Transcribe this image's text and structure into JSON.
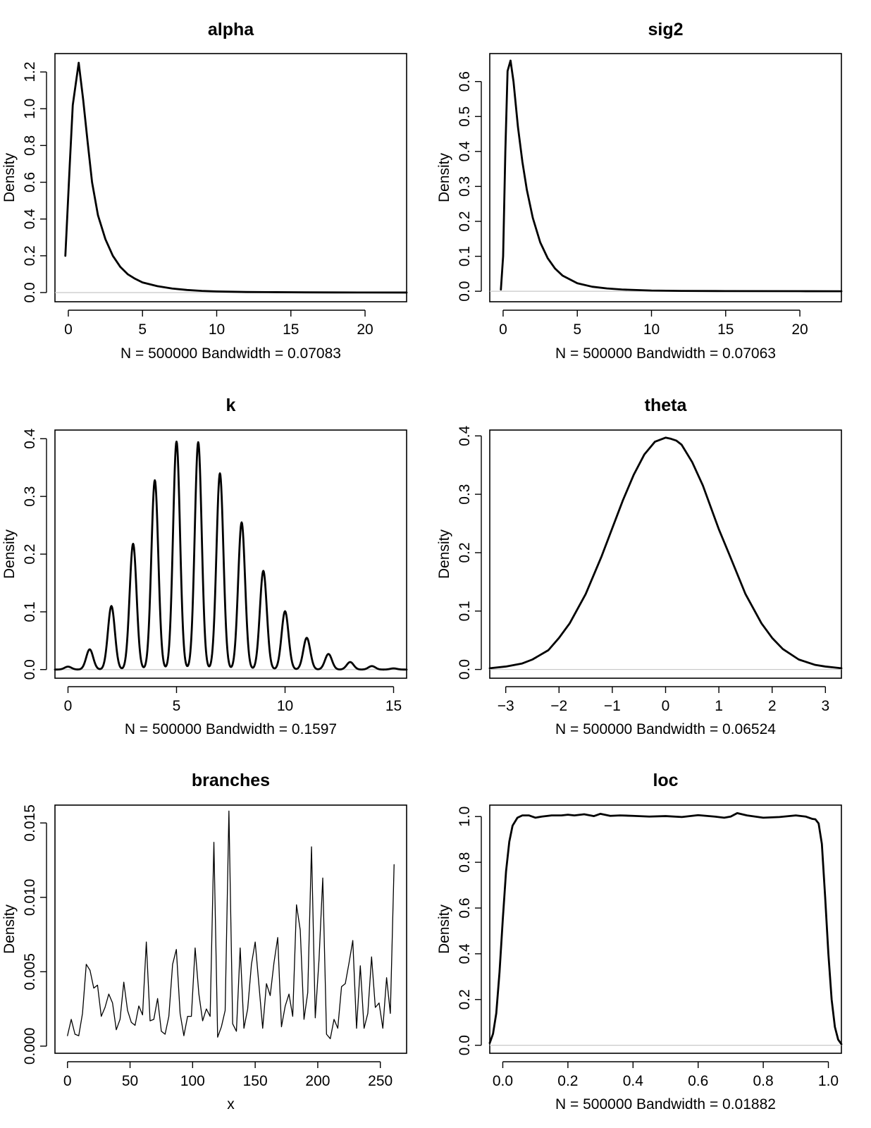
{
  "chart_data": [
    {
      "type": "line",
      "title": "alpha",
      "xlabel": "N = 500000   Bandwidth = 0.07083",
      "ylabel": "Density",
      "xlim": [
        -0.9,
        22.8
      ],
      "ylim": [
        -0.05,
        1.3
      ],
      "xticks": [
        0,
        5,
        10,
        15,
        20
      ],
      "xtick_labels": [
        "0",
        "5",
        "10",
        "15",
        "20"
      ],
      "yticks": [
        0.0,
        0.2,
        0.4,
        0.6,
        0.8,
        1.0,
        1.2
      ],
      "ytick_labels": [
        "0.0",
        "0.2",
        "0.4",
        "0.6",
        "0.8",
        "1.0",
        "1.2"
      ],
      "zero_line": true,
      "line_weight": "thick",
      "series": [
        {
          "x": [
            -0.2,
            0.1,
            0.3,
            0.7,
            1.0,
            1.3,
            1.6,
            2.0,
            2.5,
            3.0,
            3.5,
            4.0,
            4.5,
            5.0,
            6.0,
            7.0,
            8.0,
            9.0,
            10.0,
            12.0,
            14.0,
            16.0,
            18.0,
            20.0,
            22.8
          ],
          "y": [
            0.2,
            0.7,
            1.02,
            1.25,
            1.05,
            0.82,
            0.6,
            0.42,
            0.29,
            0.2,
            0.14,
            0.1,
            0.075,
            0.055,
            0.035,
            0.022,
            0.014,
            0.009,
            0.006,
            0.003,
            0.002,
            0.001,
            0.0005,
            0.0003,
            0.0
          ]
        }
      ]
    },
    {
      "type": "line",
      "title": "sig2",
      "xlabel": "N = 500000   Bandwidth = 0.07063",
      "ylabel": "Density",
      "xlim": [
        -0.9,
        22.8
      ],
      "ylim": [
        -0.03,
        0.68
      ],
      "xticks": [
        0,
        5,
        10,
        15,
        20
      ],
      "xtick_labels": [
        "0",
        "5",
        "10",
        "15",
        "20"
      ],
      "yticks": [
        0.0,
        0.1,
        0.2,
        0.3,
        0.4,
        0.5,
        0.6
      ],
      "ytick_labels": [
        "0.0",
        "0.1",
        "0.2",
        "0.3",
        "0.4",
        "0.5",
        "0.6"
      ],
      "zero_line": true,
      "line_weight": "thick",
      "series": [
        {
          "x": [
            -0.15,
            0.0,
            0.15,
            0.3,
            0.5,
            0.7,
            1.0,
            1.3,
            1.6,
            2.0,
            2.5,
            3.0,
            3.5,
            4.0,
            5.0,
            6.0,
            7.0,
            8.0,
            10.0,
            12.0,
            15.0,
            20.0,
            22.8
          ],
          "y": [
            0.005,
            0.1,
            0.4,
            0.63,
            0.66,
            0.6,
            0.47,
            0.37,
            0.29,
            0.21,
            0.14,
            0.095,
            0.065,
            0.045,
            0.023,
            0.013,
            0.008,
            0.005,
            0.002,
            0.001,
            0.0005,
            0.0002,
            0.0
          ]
        }
      ]
    },
    {
      "type": "line",
      "title": "k",
      "xlabel": "N = 500000   Bandwidth = 0.1597",
      "ylabel": "Density",
      "xlim": [
        -0.6,
        15.6
      ],
      "ylim": [
        -0.015,
        0.415
      ],
      "xticks": [
        0,
        5,
        10,
        15
      ],
      "xtick_labels": [
        "0",
        "5",
        "10",
        "15"
      ],
      "yticks": [
        0.0,
        0.1,
        0.2,
        0.3,
        0.4
      ],
      "ytick_labels": [
        "0.0",
        "0.1",
        "0.2",
        "0.3",
        "0.4"
      ],
      "zero_line": true,
      "line_weight": "thick",
      "peaks": [
        {
          "x": 0,
          "y": 0.005
        },
        {
          "x": 1,
          "y": 0.035
        },
        {
          "x": 2,
          "y": 0.11
        },
        {
          "x": 3,
          "y": 0.218
        },
        {
          "x": 4,
          "y": 0.328
        },
        {
          "x": 5,
          "y": 0.395
        },
        {
          "x": 6,
          "y": 0.394
        },
        {
          "x": 7,
          "y": 0.34
        },
        {
          "x": 8,
          "y": 0.255
        },
        {
          "x": 9,
          "y": 0.171
        },
        {
          "x": 10,
          "y": 0.101
        },
        {
          "x": 11,
          "y": 0.055
        },
        {
          "x": 12,
          "y": 0.027
        },
        {
          "x": 13,
          "y": 0.013
        },
        {
          "x": 14,
          "y": 0.006
        },
        {
          "x": 15,
          "y": 0.002
        }
      ],
      "peak_sd": 0.16
    },
    {
      "type": "line",
      "title": "theta",
      "xlabel": "N = 500000   Bandwidth = 0.06524",
      "ylabel": "Density",
      "xlim": [
        -3.3,
        3.3
      ],
      "ylim": [
        -0.015,
        0.41
      ],
      "xticks": [
        -3,
        -2,
        -1,
        0,
        1,
        2,
        3
      ],
      "xtick_labels": [
        "−3",
        "−2",
        "−1",
        "0",
        "1",
        "2",
        "3"
      ],
      "yticks": [
        0.0,
        0.1,
        0.2,
        0.3,
        0.4
      ],
      "ytick_labels": [
        "0.0",
        "0.1",
        "0.2",
        "0.3",
        "0.4"
      ],
      "zero_line": true,
      "line_weight": "thick",
      "series": [
        {
          "x": [
            -3.3,
            -3.0,
            -2.7,
            -2.5,
            -2.2,
            -2.0,
            -1.8,
            -1.5,
            -1.2,
            -1.0,
            -0.8,
            -0.6,
            -0.4,
            -0.2,
            0.0,
            0.1,
            0.2,
            0.3,
            0.5,
            0.7,
            1.0,
            1.2,
            1.5,
            1.8,
            2.0,
            2.2,
            2.5,
            2.8,
            3.0,
            3.3
          ],
          "y": [
            0.002,
            0.005,
            0.01,
            0.017,
            0.033,
            0.054,
            0.079,
            0.129,
            0.194,
            0.242,
            0.29,
            0.333,
            0.368,
            0.39,
            0.397,
            0.395,
            0.392,
            0.385,
            0.355,
            0.315,
            0.24,
            0.196,
            0.129,
            0.079,
            0.054,
            0.035,
            0.017,
            0.008,
            0.005,
            0.002
          ]
        }
      ]
    },
    {
      "type": "line",
      "title": "branches",
      "xlabel": "x",
      "ylabel": "Density",
      "xlim": [
        -10,
        271
      ],
      "ylim": [
        -0.00048,
        0.0162
      ],
      "xticks": [
        0,
        50,
        100,
        150,
        200,
        250
      ],
      "xtick_labels": [
        "0",
        "50",
        "100",
        "150",
        "200",
        "250"
      ],
      "yticks": [
        0.0,
        0.005,
        0.01,
        0.015
      ],
      "ytick_labels": [
        "0.000",
        "0.005",
        "0.010",
        "0.015"
      ],
      "zero_line": false,
      "line_weight": "thin",
      "series": [
        {
          "x": [
            0,
            3,
            6,
            9,
            12,
            15,
            18,
            21,
            24,
            27,
            30,
            33,
            36,
            39,
            42,
            45,
            48,
            51,
            54,
            57,
            60,
            63,
            66,
            69,
            72,
            75,
            78,
            81,
            84,
            87,
            90,
            93,
            96,
            99,
            102,
            105,
            108,
            111,
            114,
            117,
            120,
            123,
            126,
            129,
            132,
            135,
            138,
            141,
            144,
            147,
            150,
            153,
            156,
            159,
            162,
            165,
            168,
            171,
            174,
            177,
            180,
            183,
            186,
            189,
            192,
            195,
            198,
            201,
            204,
            207,
            210,
            213,
            216,
            219,
            222,
            225,
            228,
            231,
            234,
            237,
            240,
            243,
            246,
            249,
            252,
            255,
            258,
            261
          ],
          "y": [
            0.0007,
            0.0018,
            0.0008,
            0.0007,
            0.0022,
            0.0055,
            0.0051,
            0.0039,
            0.0041,
            0.002,
            0.0026,
            0.0035,
            0.0029,
            0.0011,
            0.0018,
            0.0043,
            0.0024,
            0.0016,
            0.0014,
            0.0027,
            0.0021,
            0.007,
            0.0017,
            0.0018,
            0.0032,
            0.001,
            0.0008,
            0.002,
            0.0055,
            0.0065,
            0.0022,
            0.0007,
            0.002,
            0.002,
            0.0066,
            0.0035,
            0.0017,
            0.0025,
            0.002,
            0.0137,
            0.0006,
            0.0013,
            0.0024,
            0.0158,
            0.0015,
            0.001,
            0.0066,
            0.0012,
            0.0025,
            0.0055,
            0.007,
            0.0041,
            0.0012,
            0.0042,
            0.0034,
            0.0056,
            0.0073,
            0.0013,
            0.0027,
            0.0035,
            0.002,
            0.0095,
            0.0078,
            0.0018,
            0.0036,
            0.0134,
            0.0019,
            0.0058,
            0.0113,
            0.0008,
            0.0005,
            0.0018,
            0.0012,
            0.004,
            0.0042,
            0.0056,
            0.0071,
            0.0012,
            0.0054,
            0.0012,
            0.0022,
            0.006,
            0.0026,
            0.0029,
            0.0012,
            0.0046,
            0.0022,
            0.0122
          ]
        }
      ]
    },
    {
      "type": "line",
      "title": "loc",
      "xlabel": "N = 500000   Bandwidth = 0.01882",
      "ylabel": "Density",
      "xlim": [
        -0.04,
        1.04
      ],
      "ylim": [
        -0.035,
        1.05
      ],
      "xticks": [
        0.0,
        0.2,
        0.4,
        0.6,
        0.8,
        1.0
      ],
      "xtick_labels": [
        "0.0",
        "0.2",
        "0.4",
        "0.6",
        "0.8",
        "1.0"
      ],
      "yticks": [
        0.0,
        0.2,
        0.4,
        0.6,
        0.8,
        1.0
      ],
      "ytick_labels": [
        "0.0",
        "0.2",
        "0.4",
        "0.6",
        "0.8",
        "1.0"
      ],
      "zero_line": true,
      "line_weight": "thick",
      "series": [
        {
          "x": [
            -0.04,
            -0.03,
            -0.02,
            -0.01,
            0.0,
            0.01,
            0.02,
            0.03,
            0.045,
            0.06,
            0.08,
            0.1,
            0.12,
            0.15,
            0.18,
            0.2,
            0.22,
            0.25,
            0.28,
            0.3,
            0.33,
            0.36,
            0.4,
            0.45,
            0.5,
            0.55,
            0.6,
            0.65,
            0.68,
            0.7,
            0.72,
            0.75,
            0.8,
            0.85,
            0.9,
            0.93,
            0.95,
            0.96,
            0.97,
            0.98,
            0.99,
            1.0,
            1.01,
            1.02,
            1.03,
            1.04
          ],
          "y": [
            0.01,
            0.05,
            0.14,
            0.32,
            0.55,
            0.76,
            0.89,
            0.96,
            0.995,
            1.005,
            1.005,
            0.995,
            1.0,
            1.005,
            1.005,
            1.008,
            1.005,
            1.01,
            1.002,
            1.012,
            1.003,
            1.005,
            1.003,
            1.0,
            1.002,
            0.998,
            1.006,
            1.0,
            0.995,
            1.0,
            1.015,
            1.005,
            0.995,
            0.998,
            1.005,
            1.0,
            0.99,
            0.988,
            0.97,
            0.88,
            0.65,
            0.4,
            0.2,
            0.08,
            0.025,
            0.005
          ]
        }
      ]
    }
  ]
}
